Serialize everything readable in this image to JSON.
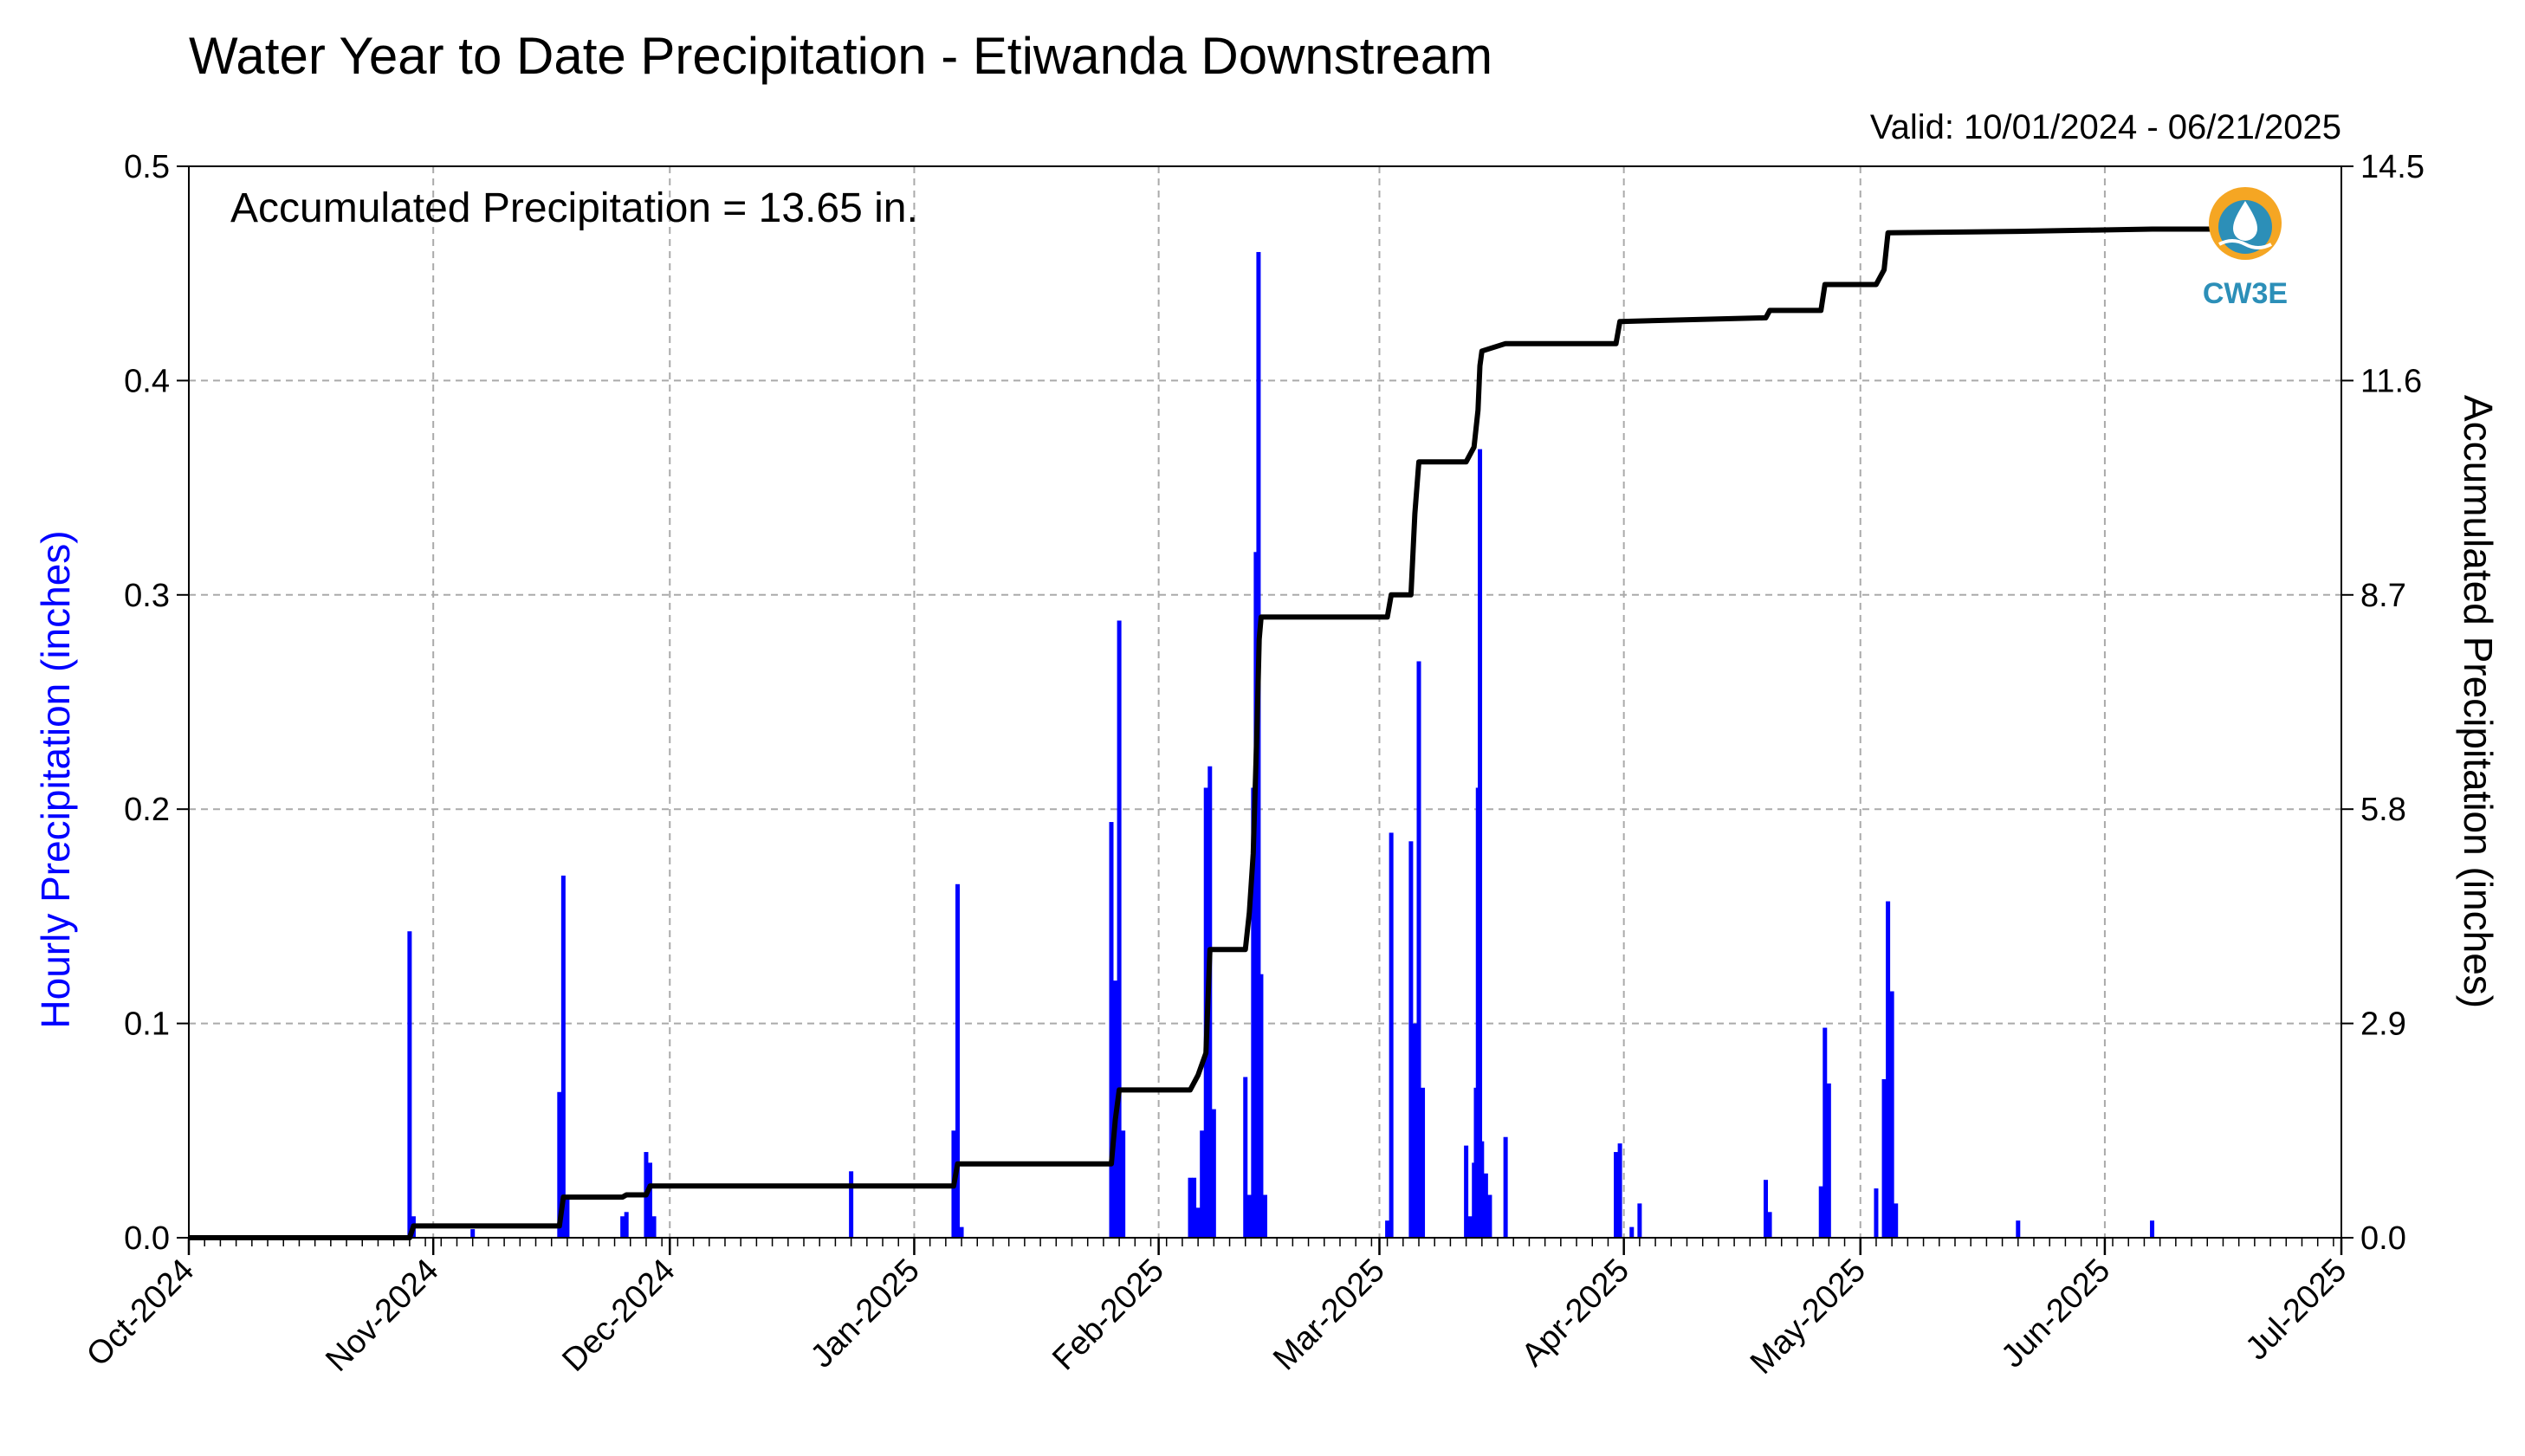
{
  "chart_data": {
    "type": "bar+line",
    "title": "Water Year to Date Precipitation - Etiwanda Downstream",
    "subtitle": "Valid: 10/01/2024 - 06/21/2025",
    "annotation": "Accumulated Precipitation = 13.65 in.",
    "ylabel_left": "Hourly Precipitation (inches)",
    "ylabel_right": "Accumulated Precipitation (inches)",
    "x_range": [
      "2024-10-01",
      "2025-07-01"
    ],
    "ylim_left": [
      0,
      0.5
    ],
    "ylim_right": [
      0,
      14.5
    ],
    "x_ticks": [
      {
        "date": "2024-10-01",
        "label": "Oct-2024"
      },
      {
        "date": "2024-11-01",
        "label": "Nov-2024"
      },
      {
        "date": "2024-12-01",
        "label": "Dec-2024"
      },
      {
        "date": "2025-01-01",
        "label": "Jan-2025"
      },
      {
        "date": "2025-02-01",
        "label": "Feb-2025"
      },
      {
        "date": "2025-03-01",
        "label": "Mar-2025"
      },
      {
        "date": "2025-04-01",
        "label": "Apr-2025"
      },
      {
        "date": "2025-05-01",
        "label": "May-2025"
      },
      {
        "date": "2025-06-01",
        "label": "Jun-2025"
      },
      {
        "date": "2025-07-01",
        "label": "Jul-2025"
      }
    ],
    "y_ticks_left": [
      "0.0",
      "0.1",
      "0.2",
      "0.3",
      "0.4",
      "0.5"
    ],
    "y_ticks_right": [
      "0.0",
      "2.9",
      "5.8",
      "8.7",
      "11.6",
      "14.5"
    ],
    "grid": true,
    "logo_text": "CW3E",
    "colors": {
      "hourly": "#0000ff",
      "accumulated": "#000000",
      "grid": "#aaaaaa",
      "logo_orange": "#f5a623",
      "logo_blue": "#2c8fb8"
    },
    "series": [
      {
        "name": "Hourly Precipitation",
        "type": "bar",
        "points": [
          [
            "2024-10-29",
            0.143
          ],
          [
            "2024-10-29T12",
            0.01
          ],
          [
            "2024-11-06",
            0.004
          ],
          [
            "2024-11-17",
            0.068
          ],
          [
            "2024-11-17T12",
            0.169
          ],
          [
            "2024-11-18",
            0.02
          ],
          [
            "2024-11-25",
            0.01
          ],
          [
            "2024-11-25T12",
            0.012
          ],
          [
            "2024-11-28",
            0.04
          ],
          [
            "2024-11-28T12",
            0.035
          ],
          [
            "2024-11-29",
            0.01
          ],
          [
            "2024-12-24",
            0.031
          ],
          [
            "2025-01-06",
            0.05
          ],
          [
            "2025-01-06T12",
            0.165
          ],
          [
            "2025-01-07",
            0.005
          ],
          [
            "2025-01-26",
            0.194
          ],
          [
            "2025-01-26T12",
            0.12
          ],
          [
            "2025-01-27",
            0.288
          ],
          [
            "2025-01-27T12",
            0.05
          ],
          [
            "2025-02-05",
            0.028
          ],
          [
            "2025-02-05T12",
            0.028
          ],
          [
            "2025-02-06",
            0.014
          ],
          [
            "2025-02-06T12",
            0.05
          ],
          [
            "2025-02-07",
            0.21
          ],
          [
            "2025-02-07T12",
            0.22
          ],
          [
            "2025-02-08",
            0.06
          ],
          [
            "2025-02-12",
            0.075
          ],
          [
            "2025-02-12T12",
            0.02
          ],
          [
            "2025-02-13",
            0.21
          ],
          [
            "2025-02-13T08",
            0.32
          ],
          [
            "2025-02-13T16",
            0.46
          ],
          [
            "2025-02-14",
            0.123
          ],
          [
            "2025-02-14T12",
            0.02
          ],
          [
            "2025-03-02",
            0.008
          ],
          [
            "2025-03-02T12",
            0.189
          ],
          [
            "2025-03-05",
            0.185
          ],
          [
            "2025-03-05T12",
            0.1
          ],
          [
            "2025-03-06",
            0.269
          ],
          [
            "2025-03-06T12",
            0.07
          ],
          [
            "2025-03-12",
            0.043
          ],
          [
            "2025-03-12T12",
            0.01
          ],
          [
            "2025-03-13",
            0.035
          ],
          [
            "2025-03-13T06",
            0.07
          ],
          [
            "2025-03-13T12",
            0.21
          ],
          [
            "2025-03-13T18",
            0.368
          ],
          [
            "2025-03-14",
            0.045
          ],
          [
            "2025-03-14T12",
            0.03
          ],
          [
            "2025-03-15",
            0.02
          ],
          [
            "2025-03-17",
            0.047
          ],
          [
            "2025-03-31",
            0.04
          ],
          [
            "2025-03-31T12",
            0.044
          ],
          [
            "2025-04-02",
            0.005
          ],
          [
            "2025-04-03",
            0.016
          ],
          [
            "2025-04-19",
            0.027
          ],
          [
            "2025-04-19T12",
            0.012
          ],
          [
            "2025-04-26",
            0.024
          ],
          [
            "2025-04-26T12",
            0.098
          ],
          [
            "2025-04-27",
            0.072
          ],
          [
            "2025-05-03",
            0.023
          ],
          [
            "2025-05-04",
            0.074
          ],
          [
            "2025-05-04T12",
            0.157
          ],
          [
            "2025-05-05",
            0.115
          ],
          [
            "2025-05-05T12",
            0.016
          ],
          [
            "2025-05-21",
            0.008
          ],
          [
            "2025-06-07",
            0.008
          ]
        ]
      },
      {
        "name": "Accumulated Precipitation",
        "type": "line",
        "points": [
          [
            "2024-10-01",
            0.0
          ],
          [
            "2024-10-29",
            0.0
          ],
          [
            "2024-10-29T12",
            0.16
          ],
          [
            "2024-11-17",
            0.16
          ],
          [
            "2024-11-17T12",
            0.55
          ],
          [
            "2024-11-25",
            0.55
          ],
          [
            "2024-11-25T12",
            0.58
          ],
          [
            "2024-11-28",
            0.58
          ],
          [
            "2024-11-28T12",
            0.7
          ],
          [
            "2025-01-06",
            0.7
          ],
          [
            "2025-01-06T12",
            1.0
          ],
          [
            "2025-01-26",
            1.0
          ],
          [
            "2025-01-26T12",
            1.6
          ],
          [
            "2025-01-27",
            2.0
          ],
          [
            "2025-02-05",
            2.0
          ],
          [
            "2025-02-06",
            2.2
          ],
          [
            "2025-02-07",
            2.5
          ],
          [
            "2025-02-07T12",
            3.9
          ],
          [
            "2025-02-12",
            3.9
          ],
          [
            "2025-02-12T12",
            4.4
          ],
          [
            "2025-02-13",
            5.2
          ],
          [
            "2025-02-13T12",
            7.0
          ],
          [
            "2025-02-13T18",
            8.1
          ],
          [
            "2025-02-14",
            8.4
          ],
          [
            "2025-03-02",
            8.4
          ],
          [
            "2025-03-02T12",
            8.7
          ],
          [
            "2025-03-05",
            8.7
          ],
          [
            "2025-03-05T12",
            9.8
          ],
          [
            "2025-03-06",
            10.5
          ],
          [
            "2025-03-12",
            10.5
          ],
          [
            "2025-03-13",
            10.7
          ],
          [
            "2025-03-13T12",
            11.2
          ],
          [
            "2025-03-13T18",
            11.8
          ],
          [
            "2025-03-14",
            12.0
          ],
          [
            "2025-03-17",
            12.1
          ],
          [
            "2025-03-31",
            12.1
          ],
          [
            "2025-03-31T12",
            12.4
          ],
          [
            "2025-04-19",
            12.45
          ],
          [
            "2025-04-19T12",
            12.55
          ],
          [
            "2025-04-26",
            12.55
          ],
          [
            "2025-04-26T12",
            12.9
          ],
          [
            "2025-05-03",
            12.9
          ],
          [
            "2025-05-04",
            13.1
          ],
          [
            "2025-05-04T12",
            13.6
          ],
          [
            "2025-05-21",
            13.62
          ],
          [
            "2025-06-07",
            13.65
          ],
          [
            "2025-06-21",
            13.65
          ]
        ]
      }
    ]
  }
}
